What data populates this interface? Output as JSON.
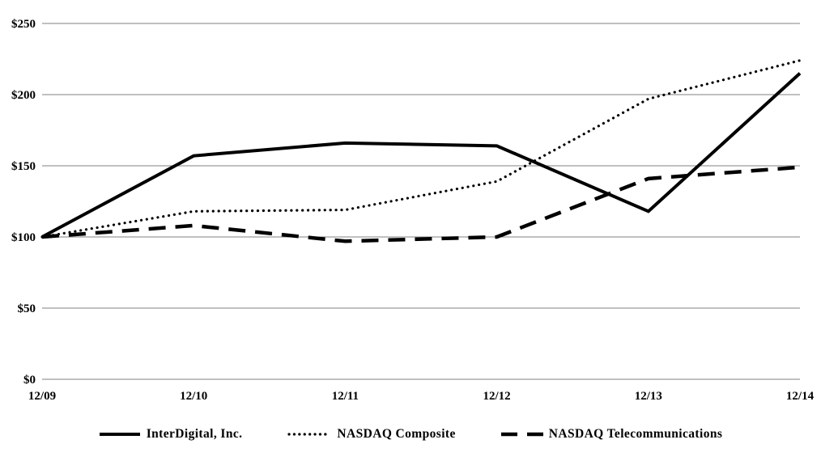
{
  "chart_data": {
    "type": "line",
    "categories": [
      "12/09",
      "12/10",
      "12/11",
      "12/12",
      "12/13",
      "12/14"
    ],
    "series": [
      {
        "name": "InterDigital, Inc.",
        "style": "solid",
        "values": [
          100,
          157,
          166,
          164,
          118,
          215
        ]
      },
      {
        "name": "NASDAQ Composite",
        "style": "dotted",
        "values": [
          100,
          118,
          119,
          139,
          197,
          224
        ]
      },
      {
        "name": "NASDAQ Telecommunications",
        "style": "dashed",
        "values": [
          100,
          108,
          97,
          100,
          141,
          149
        ]
      }
    ],
    "y_ticks": [
      0,
      50,
      100,
      150,
      200,
      250
    ],
    "y_tick_labels": [
      "$0",
      "$50",
      "$100",
      "$150",
      "$200",
      "$250"
    ],
    "ylim": [
      0,
      250
    ],
    "grid": "horizontal gridlines only, no vertical axis line",
    "legend_position": "bottom-center",
    "line_color": "#000000",
    "gridline_color": "#808080",
    "background_color": "#ffffff"
  }
}
